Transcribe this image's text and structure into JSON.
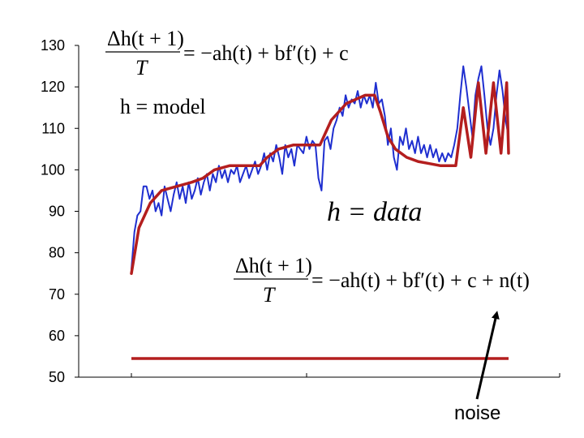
{
  "chart_data": {
    "type": "line",
    "title": "",
    "xlabel": "",
    "ylabel": "",
    "ylim": [
      50,
      130
    ],
    "yticks": [
      130,
      120,
      110,
      100,
      90,
      80,
      70,
      60,
      50
    ],
    "xlim": [
      0,
      100
    ],
    "grid": false,
    "legend": "none",
    "series": [
      {
        "color": "#1f2fd0",
        "values": [
          [
            0,
            76
          ],
          [
            0.8,
            85
          ],
          [
            1.6,
            89
          ],
          [
            2.4,
            90
          ],
          [
            3.2,
            96
          ],
          [
            4,
            96
          ],
          [
            4.8,
            93
          ],
          [
            5.6,
            95
          ],
          [
            6.4,
            90
          ],
          [
            7.2,
            92
          ],
          [
            8,
            89
          ],
          [
            8.8,
            96
          ],
          [
            9.6,
            93
          ],
          [
            10.4,
            90
          ],
          [
            11.2,
            94
          ],
          [
            12,
            97
          ],
          [
            12.8,
            93
          ],
          [
            13.6,
            96
          ],
          [
            14.4,
            92
          ],
          [
            15.2,
            97
          ],
          [
            16,
            93
          ],
          [
            16.8,
            95
          ],
          [
            17.6,
            98
          ],
          [
            18.4,
            94
          ],
          [
            19.2,
            97
          ],
          [
            20,
            99
          ],
          [
            20.8,
            95
          ],
          [
            21.6,
            99
          ],
          [
            22.4,
            97
          ],
          [
            23.2,
            101
          ],
          [
            24,
            98
          ],
          [
            24.8,
            100
          ],
          [
            25.6,
            97
          ],
          [
            26.4,
            100
          ],
          [
            27.2,
            99
          ],
          [
            28,
            101
          ],
          [
            28.8,
            97
          ],
          [
            29.6,
            99
          ],
          [
            30.4,
            101
          ],
          [
            31.2,
            98
          ],
          [
            32,
            100
          ],
          [
            32.8,
            102
          ],
          [
            33.6,
            99
          ],
          [
            34.4,
            101
          ],
          [
            35.2,
            104
          ],
          [
            36,
            100
          ],
          [
            36.8,
            104
          ],
          [
            37.6,
            102
          ],
          [
            38.4,
            106
          ],
          [
            39.2,
            103
          ],
          [
            40,
            99
          ],
          [
            40.8,
            106
          ],
          [
            41.6,
            103
          ],
          [
            42.4,
            105
          ],
          [
            43.2,
            101
          ],
          [
            44,
            106
          ],
          [
            44.8,
            105
          ],
          [
            45.6,
            104
          ],
          [
            46.4,
            108
          ],
          [
            47.2,
            105
          ],
          [
            48,
            107
          ],
          [
            48.8,
            106
          ],
          [
            49.6,
            98
          ],
          [
            50.4,
            95
          ],
          [
            51.2,
            107
          ],
          [
            52,
            108
          ],
          [
            52.8,
            105
          ],
          [
            53.6,
            110
          ],
          [
            54.4,
            112
          ],
          [
            55.2,
            115
          ],
          [
            56,
            113
          ],
          [
            56.8,
            118
          ],
          [
            57.6,
            115
          ],
          [
            58.4,
            117
          ],
          [
            59.2,
            116
          ],
          [
            60,
            119
          ],
          [
            60.8,
            115
          ],
          [
            61.6,
            118
          ],
          [
            62.4,
            116
          ],
          [
            63.2,
            118
          ],
          [
            64,
            115
          ],
          [
            64.8,
            121
          ],
          [
            65.6,
            116
          ],
          [
            66.4,
            117
          ],
          [
            67.2,
            113
          ],
          [
            68,
            106
          ],
          [
            68.8,
            110
          ],
          [
            69.6,
            103
          ],
          [
            70.4,
            100
          ],
          [
            71.2,
            108
          ],
          [
            72,
            106
          ],
          [
            72.8,
            110
          ],
          [
            73.6,
            105
          ],
          [
            74.4,
            107
          ],
          [
            75.2,
            104
          ],
          [
            76,
            108
          ],
          [
            76.8,
            104
          ],
          [
            77.6,
            106
          ],
          [
            78.4,
            103
          ],
          [
            79.2,
            106
          ],
          [
            80,
            103
          ],
          [
            80.8,
            105
          ],
          [
            81.6,
            102
          ],
          [
            82.4,
            104
          ],
          [
            83.2,
            102
          ],
          [
            84,
            104
          ],
          [
            84.8,
            103
          ],
          [
            85.6,
            106
          ],
          [
            86.4,
            110
          ],
          [
            87.2,
            118
          ],
          [
            88,
            125
          ],
          [
            88.8,
            120
          ],
          [
            89.6,
            114
          ],
          [
            90.4,
            108
          ],
          [
            91.2,
            118
          ],
          [
            92,
            122
          ],
          [
            92.8,
            125
          ],
          [
            93.6,
            118
          ],
          [
            94.4,
            110
          ],
          [
            95.2,
            106
          ],
          [
            96,
            110
          ],
          [
            96.8,
            118
          ],
          [
            97.6,
            124
          ],
          [
            98.4,
            119
          ],
          [
            99.2,
            112
          ],
          [
            100,
            108
          ]
        ]
      },
      {
        "color": "#b41e1e",
        "values": [
          [
            0,
            75
          ],
          [
            2,
            86
          ],
          [
            5,
            92
          ],
          [
            8,
            95
          ],
          [
            12,
            96
          ],
          [
            16,
            97
          ],
          [
            19,
            98
          ],
          [
            22,
            100
          ],
          [
            26,
            101
          ],
          [
            30,
            101
          ],
          [
            34,
            101
          ],
          [
            36,
            103
          ],
          [
            39,
            105
          ],
          [
            43,
            106
          ],
          [
            48,
            106
          ],
          [
            50,
            106
          ],
          [
            53,
            112
          ],
          [
            57,
            116
          ],
          [
            62,
            118
          ],
          [
            64.5,
            118
          ],
          [
            66,
            114
          ],
          [
            68,
            108
          ],
          [
            70,
            105
          ],
          [
            73,
            103
          ],
          [
            76,
            102
          ],
          [
            79,
            101.5
          ],
          [
            82,
            101
          ],
          [
            86,
            101
          ],
          [
            88,
            115
          ],
          [
            90,
            103
          ],
          [
            92,
            121
          ],
          [
            94,
            104
          ],
          [
            96,
            121
          ],
          [
            98,
            104
          ],
          [
            99.5,
            121
          ],
          [
            100,
            104
          ]
        ]
      }
    ],
    "annotations": {
      "model_equation_lhs": "Δh(t + 1)",
      "model_equation_denominator": "T",
      "model_equation_rhs": "= −ah(t) + bf′(t) + c",
      "model_label": "h = model",
      "data_label": "h = data",
      "data_equation_lhs": "Δh(t + 1)",
      "data_equation_denominator": "T",
      "data_equation_rhs": "= −ah(t) + bf′(t) + c + n(t)",
      "noise_value": 54.5,
      "noise_label": "noise"
    }
  }
}
